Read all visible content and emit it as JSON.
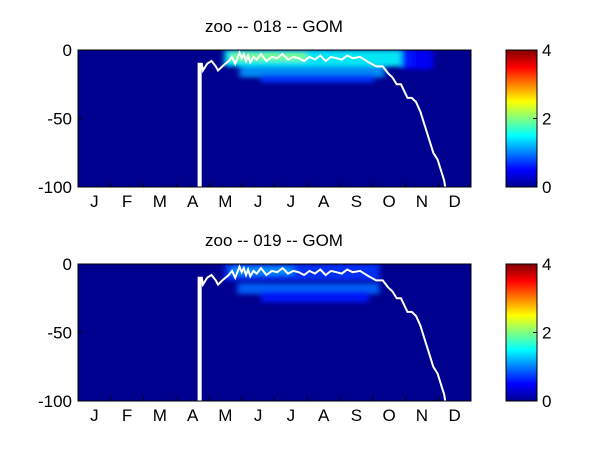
{
  "chart_data": [
    {
      "type": "heatmap",
      "title": "zoo -- 018 -- GOM",
      "xlabel": "",
      "ylabel": "",
      "x_tick_labels": [
        "J",
        "F",
        "M",
        "A",
        "M",
        "J",
        "J",
        "A",
        "S",
        "O",
        "N",
        "D"
      ],
      "y_ticks": [
        0,
        -50,
        -100
      ],
      "ylim": [
        -100,
        0
      ],
      "colorbar": {
        "ticks": [
          0,
          2,
          4
        ],
        "clim": [
          0,
          4
        ],
        "colormap": "jet"
      },
      "background_value": 0,
      "patches": [
        {
          "x": [
            136,
            312
          ],
          "y": [
            -12,
            0
          ],
          "value": 1.5
        },
        {
          "x": [
            142,
            212
          ],
          "y": [
            -8,
            -2
          ],
          "value": 2.0
        },
        {
          "x": [
            150,
            285
          ],
          "y": [
            -20,
            -12
          ],
          "value": 1.1
        },
        {
          "x": [
            170,
            275
          ],
          "y": [
            -24,
            -18
          ],
          "value": 0.7
        },
        {
          "x": [
            300,
            330
          ],
          "y": [
            -14,
            0
          ],
          "value": 0.5
        }
      ],
      "line": {
        "color": "#ffffff",
        "x": [
          112,
          112,
          113,
          113,
          114,
          114,
          115,
          116,
          120,
          124,
          128,
          130,
          134,
          140,
          143,
          146,
          150,
          152,
          154,
          156,
          158,
          160,
          163,
          166,
          170,
          175,
          180,
          185,
          190,
          195,
          200,
          205,
          210,
          215,
          220,
          225,
          230,
          235,
          240,
          245,
          250,
          255,
          262,
          270,
          277,
          283,
          288,
          292,
          296,
          300,
          303,
          306,
          310,
          314,
          318,
          322,
          326,
          330,
          334,
          338,
          340,
          341,
          342,
          342
        ],
        "y": [
          -100,
          -10,
          -10,
          -100,
          -100,
          -10,
          -10,
          -15,
          -10,
          -8,
          -12,
          -15,
          -12,
          -8,
          -5,
          -10,
          -2,
          -6,
          -3,
          -8,
          -4,
          -9,
          -5,
          -7,
          -3,
          -8,
          -5,
          -6,
          -3,
          -7,
          -5,
          -6,
          -8,
          -5,
          -7,
          -4,
          -8,
          -5,
          -6,
          -7,
          -4,
          -6,
          -5,
          -9,
          -12,
          -12,
          -17,
          -20,
          -25,
          -25,
          -30,
          -35,
          -35,
          -38,
          -45,
          -55,
          -65,
          -75,
          -80,
          -90,
          -95,
          -100,
          -100,
          -100
        ]
      }
    },
    {
      "type": "heatmap",
      "title": "zoo -- 019 -- GOM",
      "xlabel": "",
      "ylabel": "",
      "x_tick_labels": [
        "J",
        "F",
        "M",
        "A",
        "M",
        "J",
        "J",
        "A",
        "S",
        "O",
        "N",
        "D"
      ],
      "y_ticks": [
        0,
        -50,
        -100
      ],
      "ylim": [
        -100,
        0
      ],
      "colorbar": {
        "ticks": [
          0,
          2,
          4
        ],
        "clim": [
          0,
          4
        ],
        "colormap": "jet"
      },
      "background_value": 0,
      "patches": [
        {
          "x": [
            136,
            280
          ],
          "y": [
            -12,
            0
          ],
          "value": 0.7
        },
        {
          "x": [
            148,
            280
          ],
          "y": [
            -22,
            -14
          ],
          "value": 0.9
        },
        {
          "x": [
            170,
            270
          ],
          "y": [
            -28,
            -20
          ],
          "value": 0.6
        },
        {
          "x": [
            142,
            200
          ],
          "y": [
            -8,
            -2
          ],
          "value": 1.1
        }
      ],
      "line": {
        "color": "#ffffff",
        "x": [
          112,
          112,
          113,
          113,
          114,
          114,
          115,
          116,
          120,
          124,
          128,
          130,
          134,
          140,
          143,
          146,
          150,
          152,
          154,
          156,
          158,
          160,
          163,
          166,
          170,
          175,
          180,
          185,
          190,
          195,
          200,
          205,
          210,
          215,
          220,
          225,
          230,
          235,
          240,
          245,
          250,
          255,
          262,
          270,
          277,
          283,
          288,
          292,
          296,
          300,
          303,
          306,
          310,
          314,
          318,
          322,
          326,
          330,
          334,
          338,
          340,
          341,
          342,
          342
        ],
        "y": [
          -100,
          -10,
          -10,
          -100,
          -100,
          -10,
          -10,
          -15,
          -10,
          -8,
          -12,
          -15,
          -12,
          -8,
          -5,
          -10,
          -2,
          -6,
          -3,
          -8,
          -4,
          -9,
          -5,
          -7,
          -3,
          -8,
          -5,
          -6,
          -3,
          -7,
          -5,
          -6,
          -8,
          -5,
          -7,
          -4,
          -8,
          -5,
          -6,
          -7,
          -4,
          -6,
          -5,
          -9,
          -12,
          -12,
          -17,
          -20,
          -25,
          -25,
          -30,
          -35,
          -35,
          -38,
          -45,
          -55,
          -65,
          -75,
          -80,
          -90,
          -95,
          -100,
          -100,
          -100
        ]
      }
    }
  ]
}
